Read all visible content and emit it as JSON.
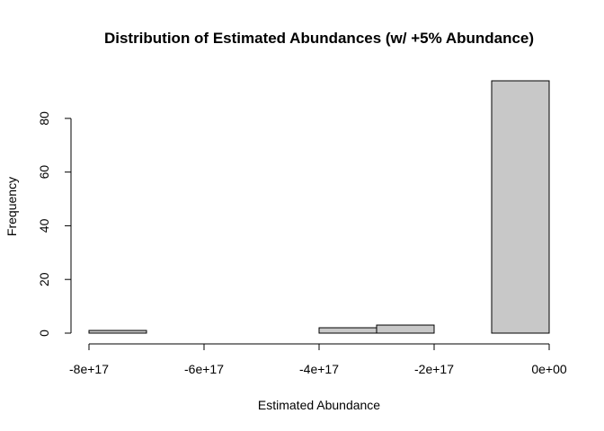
{
  "chart_data": {
    "type": "bar",
    "title": "Distribution of Estimated Abundances (w/ +5% Abundance)",
    "xlabel": "Estimated Abundance",
    "ylabel": "Frequency",
    "bins": [
      {
        "start": -8e+17,
        "end": -7e+17,
        "count": 1
      },
      {
        "start": -7e+17,
        "end": -6e+17,
        "count": 0
      },
      {
        "start": -6e+17,
        "end": -5e+17,
        "count": 0
      },
      {
        "start": -5e+17,
        "end": -4e+17,
        "count": 0
      },
      {
        "start": -4e+17,
        "end": -3e+17,
        "count": 2
      },
      {
        "start": -3e+17,
        "end": -2e+17,
        "count": 3
      },
      {
        "start": -2e+17,
        "end": -1e+17,
        "count": 0
      },
      {
        "start": -1e+17,
        "end": 0,
        "count": 94
      }
    ],
    "xlim": [
      -8e+17,
      0
    ],
    "ylim": [
      0,
      94
    ],
    "x_ticks": [
      {
        "value": -8e+17,
        "label": "-8e+17"
      },
      {
        "value": -6e+17,
        "label": "-6e+17"
      },
      {
        "value": -4e+17,
        "label": "-4e+17"
      },
      {
        "value": -2e+17,
        "label": "-2e+17"
      },
      {
        "value": 0,
        "label": "0e+00"
      }
    ],
    "y_ticks": [
      {
        "value": 0,
        "label": "0"
      },
      {
        "value": 20,
        "label": "20"
      },
      {
        "value": 40,
        "label": "40"
      },
      {
        "value": 60,
        "label": "60"
      },
      {
        "value": 80,
        "label": "80"
      }
    ],
    "bar_fill": "#c8c8c8",
    "grid": false
  }
}
